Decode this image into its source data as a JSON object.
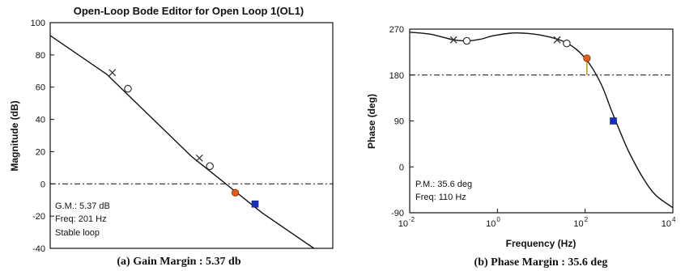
{
  "chart_data": [
    {
      "type": "line",
      "title": "Open-Loop Bode Editor for Open Loop 1(OL1)",
      "ylabel": "Magnitude (dB)",
      "xlabel": "",
      "ylim": [
        -40,
        100
      ],
      "yticks": [
        100,
        80,
        60,
        40,
        20,
        0,
        -20,
        -40
      ],
      "grid": false,
      "reference_line": {
        "y": 0,
        "style": "dash-dot"
      },
      "curve": {
        "x_frac": [
          0.0,
          0.2,
          0.5,
          0.75,
          1.0
        ],
        "y": [
          92,
          68,
          17,
          -18,
          -48
        ]
      },
      "markers": [
        {
          "kind": "cross",
          "x_frac": 0.22,
          "y": 69
        },
        {
          "kind": "circle",
          "x_frac": 0.275,
          "y": 59
        },
        {
          "kind": "cross",
          "x_frac": 0.528,
          "y": 16
        },
        {
          "kind": "circle",
          "x_frac": 0.565,
          "y": 11
        },
        {
          "kind": "filled-orange",
          "x_frac": 0.655,
          "y": -5.5
        },
        {
          "kind": "filled-blue",
          "x_frac": 0.725,
          "y": -12.5
        }
      ],
      "annotation": [
        "G.M.: 5.37 dB",
        "Freq: 201 Hz",
        "Stable loop"
      ],
      "caption": "(a) Gain Margin : 5.37 db",
      "colors": {
        "line": "#111111",
        "orange_marker": "#e0601a",
        "blue_marker": "#1a2fbf"
      }
    },
    {
      "type": "line",
      "title": "",
      "ylabel": "Phase (deg)",
      "xlabel": "Frequency (Hz)",
      "x_scale": "log",
      "xlim": [
        0.01,
        10000
      ],
      "xticks": [
        {
          "exp": "-2"
        },
        {
          "exp": "0"
        },
        {
          "exp": "2"
        },
        {
          "exp": "4"
        }
      ],
      "xtick_base": "10",
      "ylim": [
        -90,
        270
      ],
      "yticks": [
        270,
        180,
        90,
        0,
        -90
      ],
      "grid": false,
      "reference_line": {
        "y": 180,
        "style": "dash-dot"
      },
      "curve": {
        "x": [
          0.01,
          0.03,
          0.1,
          0.2,
          0.4,
          0.8,
          2,
          4,
          10,
          30,
          60,
          100,
          150,
          250,
          400,
          700,
          1000,
          2000,
          4000,
          10000
        ],
        "y": [
          264,
          260,
          249,
          247,
          250,
          257,
          262,
          262,
          258,
          247,
          232,
          213,
          192,
          156,
          110,
          59,
          29,
          -19,
          -55,
          -80
        ]
      },
      "markers": [
        {
          "kind": "cross",
          "x": 0.1,
          "y": 249
        },
        {
          "kind": "circle",
          "x": 0.2,
          "y": 247
        },
        {
          "kind": "cross",
          "x": 23,
          "y": 249
        },
        {
          "kind": "circle",
          "x": 38,
          "y": 242
        },
        {
          "kind": "filled-orange",
          "x": 110,
          "y": 213
        },
        {
          "kind": "filled-blue",
          "x": 440,
          "y": 90
        }
      ],
      "annotation": [
        "P.M.: 35.6 deg",
        "Freq: 110 Hz"
      ],
      "caption": "(b) Phase Margin : 35.6 deg",
      "colors": {
        "line": "#111111",
        "orange_marker": "#e0601a",
        "blue_marker": "#1a2fbf",
        "margin_bar": "#c99a1e"
      }
    }
  ]
}
